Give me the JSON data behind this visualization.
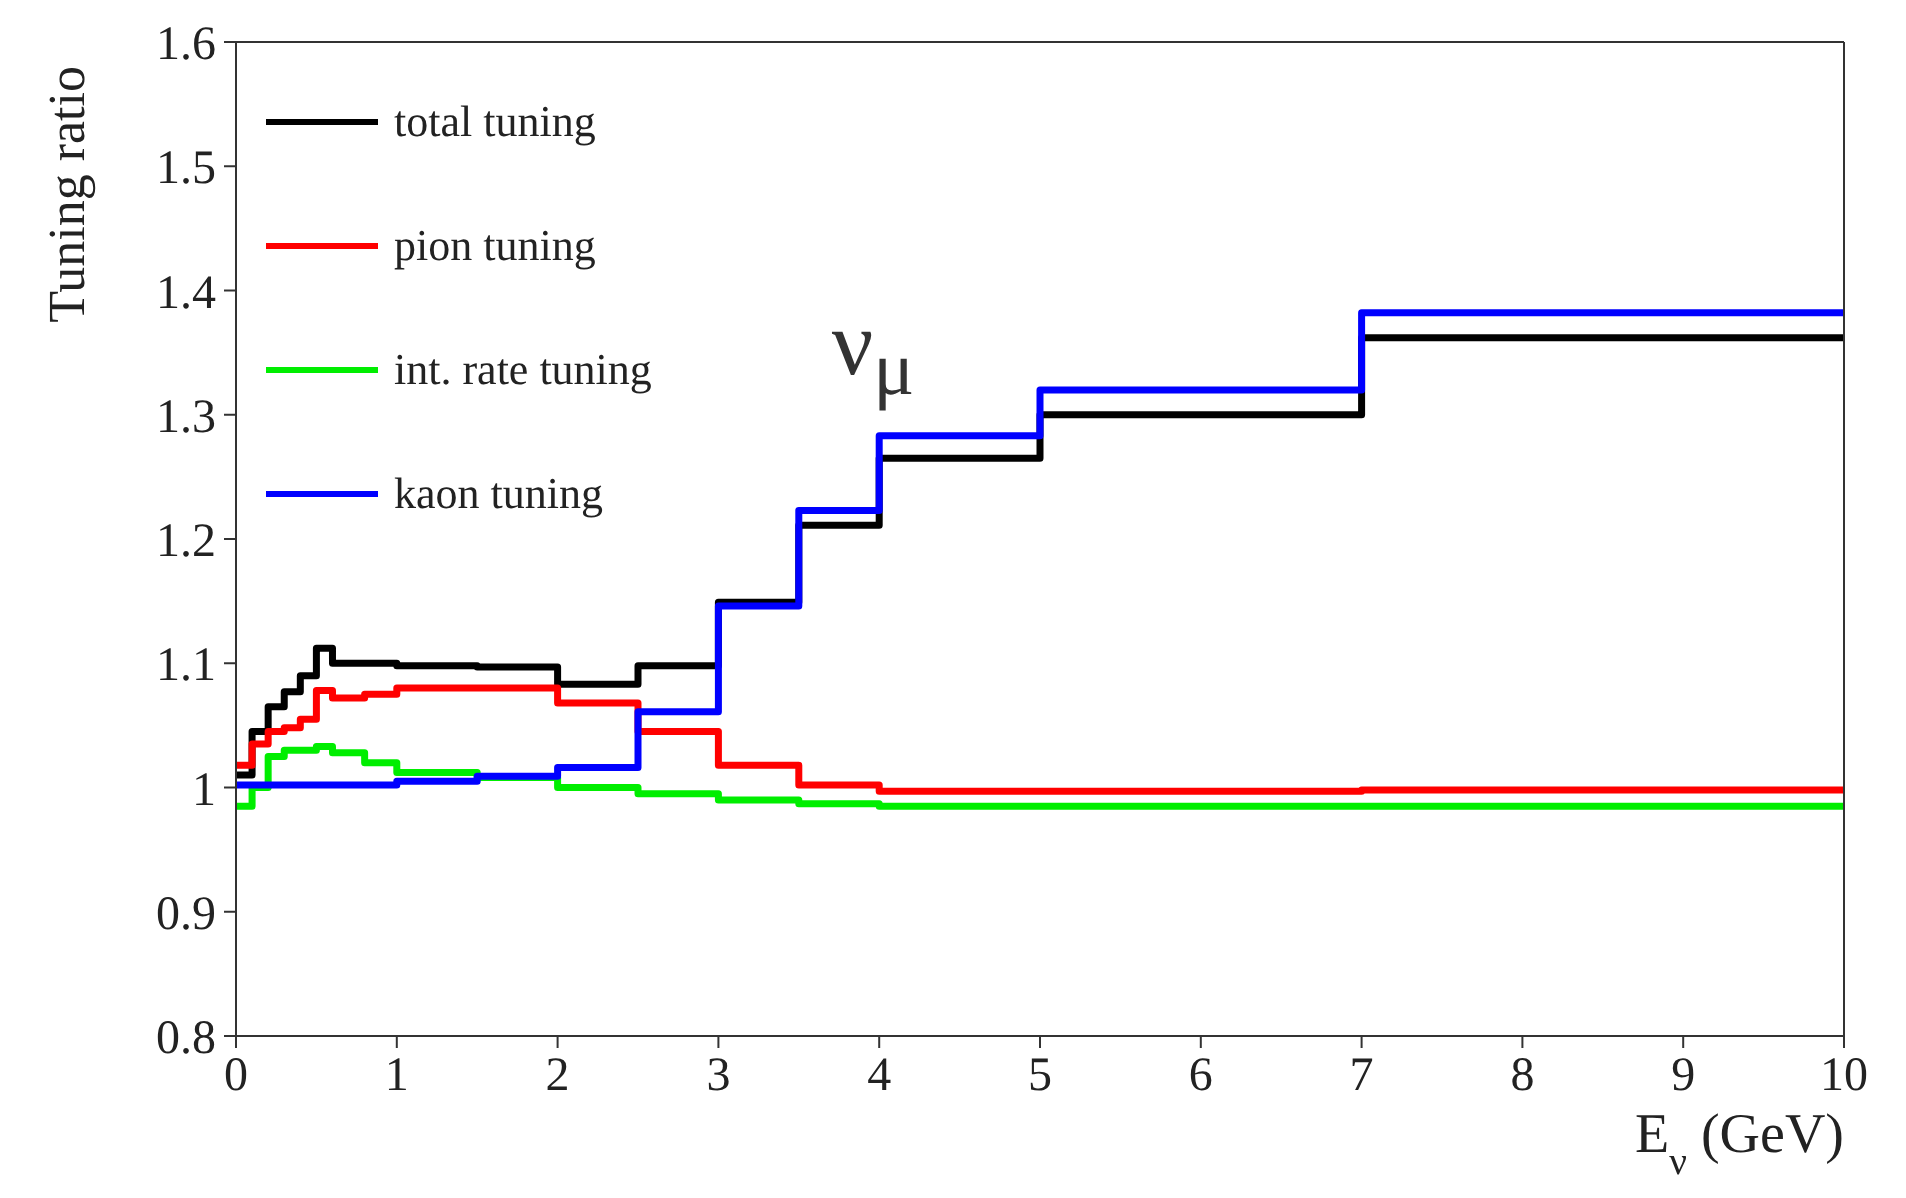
{
  "chart_data": {
    "type": "step",
    "xlabel": "E$_{ν}$ (GeV)",
    "ylabel": "Tuning ratio",
    "annotations": [
      "ν$_{μ}$"
    ],
    "x": [
      0,
      0.1,
      0.2,
      0.3,
      0.4,
      0.5,
      0.6,
      0.8,
      1.0,
      1.5,
      2.0,
      2.5,
      3.0,
      3.5,
      4.0,
      5.0,
      7.0,
      10.0
    ],
    "series": [
      {
        "name": "total tuning",
        "color": "#000000",
        "values": [
          1.01,
          1.045,
          1.065,
          1.077,
          1.09,
          1.112,
          1.1,
          1.1,
          1.098,
          1.097,
          1.083,
          1.098,
          1.149,
          1.211,
          1.265,
          1.3,
          1.362,
          1.362
        ]
      },
      {
        "name": "pion tuning",
        "color": "#ff0000",
        "values": [
          1.018,
          1.035,
          1.045,
          1.048,
          1.055,
          1.078,
          1.072,
          1.075,
          1.08,
          1.08,
          1.068,
          1.045,
          1.018,
          1.002,
          0.997,
          0.997,
          0.998,
          0.998
        ]
      },
      {
        "name": "int. rate tuning",
        "color": "#00ee00",
        "values": [
          0.985,
          1.0,
          1.025,
          1.03,
          1.03,
          1.033,
          1.028,
          1.02,
          1.012,
          1.008,
          1.0,
          0.995,
          0.99,
          0.987,
          0.985,
          0.985,
          0.985,
          0.985
        ]
      },
      {
        "name": "kaon tuning",
        "color": "#0000ff",
        "values": [
          1.002,
          1.002,
          1.002,
          1.002,
          1.002,
          1.002,
          1.002,
          1.002,
          1.005,
          1.009,
          1.016,
          1.061,
          1.146,
          1.223,
          1.283,
          1.32,
          1.382,
          1.382
        ]
      }
    ],
    "xlim": [
      0,
      10
    ],
    "xticks": [
      0,
      1,
      2,
      3,
      4,
      5,
      6,
      7,
      8,
      9,
      10
    ],
    "ylim": [
      0.8,
      1.6
    ],
    "yticks": [
      0.8,
      0.9,
      1,
      1.1,
      1.2,
      1.3,
      1.4,
      1.5,
      1.6
    ],
    "grid": false,
    "legend": "top left",
    "marker": "none",
    "line_style": "solid"
  }
}
